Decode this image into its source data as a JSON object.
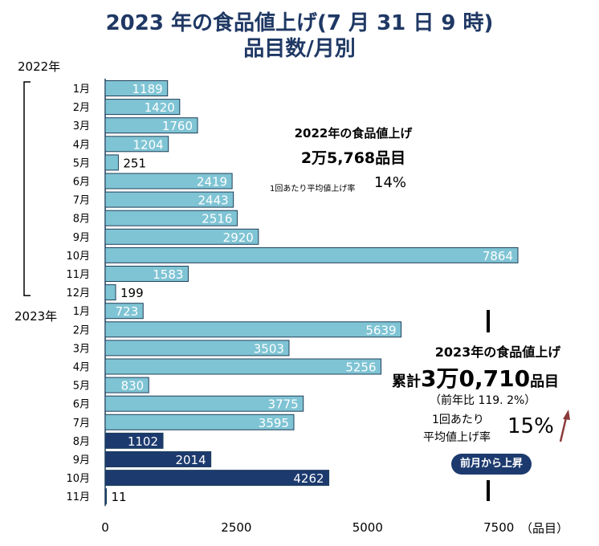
{
  "chart_data": {
    "type": "bar",
    "orientation": "horizontal",
    "title": "2023 年の食品値上げ(7 月 31 日 9 時)",
    "subtitle": "品目数/月別",
    "year_labels": [
      "2022年",
      "2023年"
    ],
    "categories": [
      "1月",
      "2月",
      "3月",
      "4月",
      "5月",
      "6月",
      "7月",
      "8月",
      "9月",
      "10月",
      "11月",
      "12月",
      "1月",
      "2月",
      "3月",
      "4月",
      "5月",
      "6月",
      "7月",
      "8月",
      "9月",
      "10月",
      "11月"
    ],
    "values": [
      1189,
      1420,
      1760,
      1204,
      251,
      2419,
      2443,
      2516,
      2920,
      7864,
      1583,
      199,
      723,
      5639,
      3503,
      5256,
      830,
      3775,
      3595,
      1102,
      2014,
      4262,
      11
    ],
    "highlight_from_index": 19,
    "xticks": [
      0,
      2500,
      5000,
      7500
    ],
    "xunit": "（品目）",
    "xlim": [
      0,
      8000
    ],
    "colors": {
      "bar": "#7fc4d4",
      "bar_highlight": "#1c3a6e",
      "border": "#1f3f5a",
      "title": "#1f3864",
      "arrow": "#8b3a3a"
    }
  },
  "summary_2022": {
    "heading": "2022年の食品値上げ",
    "total": "2万5,768品目",
    "rate_label": "1回あたり平均値上げ率",
    "rate": "14%"
  },
  "summary_2023": {
    "heading": "2023年の食品値上げ",
    "total_prefix": "累計",
    "total": "3万0,710",
    "total_suffix": "品目",
    "yoy": "（前年比 119. 2%）",
    "rate_label_1": "1回あたり",
    "rate_label_2": "平均値上げ率",
    "rate": "15%",
    "badge": "前月から上昇",
    "arrow_icon": "up-arrow"
  }
}
